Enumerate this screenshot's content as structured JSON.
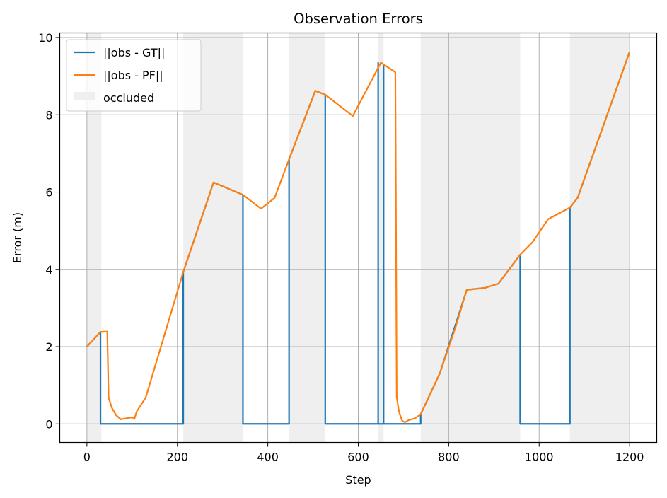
{
  "chart_data": {
    "type": "line",
    "title": "Observation Errors",
    "xlabel": "Step",
    "ylabel": "Error (m)",
    "xlim": [
      -60,
      1260
    ],
    "ylim": [
      -0.48,
      10.12
    ],
    "xticks": [
      0,
      200,
      400,
      600,
      800,
      1000,
      1200
    ],
    "yticks": [
      0,
      2,
      4,
      6,
      8,
      10
    ],
    "grid": true,
    "legend_position": "top-left",
    "occluded_label": "occluded",
    "occluded_color": "#efefef",
    "occluded_intervals": [
      [
        0,
        32
      ],
      [
        213,
        345
      ],
      [
        447,
        527
      ],
      [
        644,
        656
      ],
      [
        738,
        958
      ],
      [
        1068,
        1200
      ]
    ],
    "series": [
      {
        "name": "||obs - GT||",
        "color": "#1f77b4",
        "points": [
          [
            0,
            2.0
          ],
          [
            30,
            2.38
          ],
          [
            30,
            0
          ],
          [
            213,
            0
          ],
          [
            213,
            3.93
          ],
          [
            280,
            6.25
          ],
          [
            345,
            5.93
          ],
          [
            345,
            0
          ],
          [
            447,
            0
          ],
          [
            447,
            6.85
          ],
          [
            505,
            8.62
          ],
          [
            527,
            8.52
          ],
          [
            527,
            0
          ],
          [
            644,
            0
          ],
          [
            644,
            9.35
          ],
          [
            644,
            0
          ],
          [
            656,
            0
          ],
          [
            656,
            9.3
          ],
          [
            656,
            0
          ],
          [
            738,
            0
          ],
          [
            738,
            0.25
          ],
          [
            780,
            1.3
          ],
          [
            840,
            3.47
          ],
          [
            880,
            3.52
          ],
          [
            910,
            3.63
          ],
          [
            958,
            4.38
          ],
          [
            958,
            0
          ],
          [
            1068,
            0
          ],
          [
            1068,
            5.6
          ],
          [
            1085,
            5.85
          ],
          [
            1200,
            9.63
          ]
        ]
      },
      {
        "name": "||obs - PF||",
        "color": "#ff7f0e",
        "points": [
          [
            0,
            2.0
          ],
          [
            30,
            2.38
          ],
          [
            45,
            2.39
          ],
          [
            48,
            0.68
          ],
          [
            55,
            0.42
          ],
          [
            65,
            0.22
          ],
          [
            75,
            0.12
          ],
          [
            90,
            0.15
          ],
          [
            100,
            0.17
          ],
          [
            105,
            0.13
          ],
          [
            110,
            0.32
          ],
          [
            130,
            0.68
          ],
          [
            213,
            3.93
          ],
          [
            280,
            6.25
          ],
          [
            345,
            5.93
          ],
          [
            385,
            5.57
          ],
          [
            415,
            5.85
          ],
          [
            447,
            6.85
          ],
          [
            505,
            8.62
          ],
          [
            527,
            8.52
          ],
          [
            588,
            7.97
          ],
          [
            650,
            9.35
          ],
          [
            682,
            9.1
          ],
          [
            685,
            0.7
          ],
          [
            690,
            0.32
          ],
          [
            697,
            0.08
          ],
          [
            703,
            0.04
          ],
          [
            712,
            0.1
          ],
          [
            725,
            0.14
          ],
          [
            738,
            0.25
          ],
          [
            780,
            1.3
          ],
          [
            815,
            2.5
          ],
          [
            840,
            3.47
          ],
          [
            880,
            3.52
          ],
          [
            910,
            3.63
          ],
          [
            958,
            4.38
          ],
          [
            985,
            4.7
          ],
          [
            1020,
            5.3
          ],
          [
            1068,
            5.6
          ],
          [
            1085,
            5.85
          ],
          [
            1200,
            9.63
          ]
        ]
      }
    ]
  }
}
